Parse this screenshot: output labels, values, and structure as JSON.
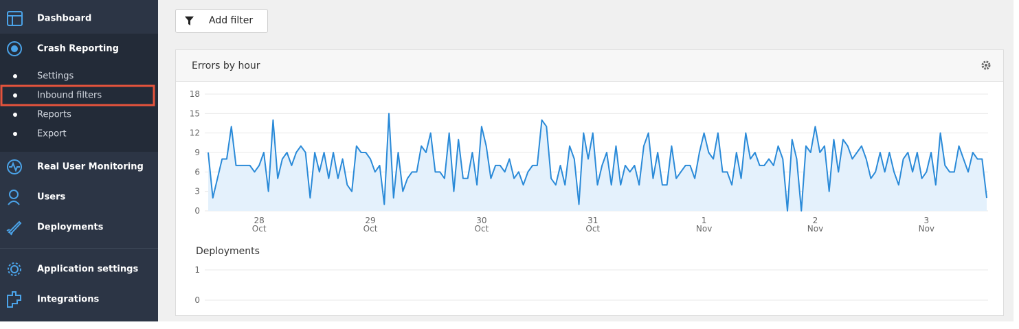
{
  "sidebar": {
    "items": [
      {
        "label": "Dashboard"
      },
      {
        "label": "Crash Reporting",
        "children": [
          {
            "label": "Settings"
          },
          {
            "label": "Inbound filters"
          },
          {
            "label": "Reports"
          },
          {
            "label": "Export"
          }
        ]
      },
      {
        "label": "Real User Monitoring"
      },
      {
        "label": "Users"
      },
      {
        "label": "Deployments"
      },
      {
        "label": "Application settings"
      },
      {
        "label": "Integrations"
      }
    ]
  },
  "toolbar": {
    "button": "Add filter"
  },
  "chart_data": [
    {
      "type": "line",
      "title": "Errors by hour",
      "categories": [
        null,
        null,
        null,
        null,
        null,
        null,
        null,
        null,
        null,
        null,
        null,
        "28 Oct",
        null,
        null,
        null,
        null,
        null,
        null,
        null,
        null,
        null,
        null,
        null,
        null,
        null,
        null,
        null,
        null,
        null,
        null,
        null,
        null,
        null,
        null,
        null,
        "29 Oct",
        null,
        null,
        null,
        null,
        null,
        null,
        null,
        null,
        null,
        null,
        null,
        null,
        null,
        null,
        null,
        null,
        null,
        null,
        null,
        null,
        null,
        null,
        null,
        "30 Oct",
        null,
        null,
        null,
        null,
        null,
        null,
        null,
        null,
        null,
        null,
        null,
        null,
        null,
        null,
        null,
        null,
        null,
        null,
        null,
        null,
        null,
        null,
        null,
        "31 Oct",
        null,
        null,
        null,
        null,
        null,
        null,
        null,
        null,
        null,
        null,
        null,
        null,
        null,
        null,
        null,
        null,
        null,
        null,
        null,
        null,
        null,
        null,
        null,
        "1 Nov",
        null,
        null,
        null,
        null,
        null,
        null,
        null,
        null,
        null,
        null,
        null,
        null,
        null,
        null,
        null,
        null,
        null,
        null,
        null,
        null,
        null,
        null,
        null,
        "2 Nov",
        null,
        null,
        null,
        null,
        null,
        null,
        null,
        null,
        null,
        null,
        null,
        null,
        null,
        null,
        null,
        null,
        null,
        null,
        null,
        null,
        null,
        null,
        null,
        "3 Nov",
        null,
        null,
        null,
        null,
        null,
        null,
        null,
        null,
        null,
        null,
        null,
        null,
        null
      ],
      "values": [
        9,
        2,
        5,
        8,
        8,
        13,
        7,
        7,
        7,
        7,
        6,
        7,
        9,
        3,
        14,
        5,
        8,
        9,
        7,
        9,
        10,
        9,
        2,
        9,
        6,
        9,
        5,
        9,
        5,
        8,
        4,
        3,
        10,
        9,
        9,
        8,
        6,
        7,
        1,
        15,
        2,
        9,
        3,
        5,
        6,
        6,
        10,
        9,
        12,
        6,
        6,
        5,
        12,
        3,
        11,
        5,
        5,
        9,
        4,
        13,
        10,
        5,
        7,
        7,
        6,
        8,
        5,
        6,
        4,
        6,
        7,
        7,
        14,
        13,
        5,
        4,
        7,
        4,
        10,
        8,
        1,
        12,
        8,
        12,
        4,
        7,
        9,
        4,
        10,
        4,
        7,
        6,
        7,
        4,
        10,
        12,
        5,
        9,
        4,
        4,
        10,
        5,
        6,
        7,
        7,
        5,
        9,
        12,
        9,
        8,
        12,
        6,
        6,
        4,
        9,
        5,
        12,
        8,
        9,
        7,
        7,
        8,
        7,
        10,
        8,
        0,
        11,
        8,
        0,
        10,
        9,
        13,
        9,
        10,
        3,
        11,
        6,
        11,
        10,
        8,
        9,
        10,
        8,
        5,
        6,
        9,
        6,
        9,
        6,
        4,
        8,
        9,
        6,
        9,
        5,
        6,
        9,
        4,
        12,
        7,
        6,
        6,
        10,
        8,
        6,
        9,
        8,
        8,
        2
      ],
      "color": "#2a8ad8",
      "fill": "#e4f1fc",
      "ylim": [
        0,
        18
      ],
      "yticks": [
        0,
        3,
        6,
        9,
        12,
        15,
        18
      ],
      "grid": true
    },
    {
      "type": "line",
      "title": "Deployments",
      "ylim": [
        0,
        1
      ],
      "yticks": [
        0,
        1
      ],
      "grid": true
    }
  ]
}
